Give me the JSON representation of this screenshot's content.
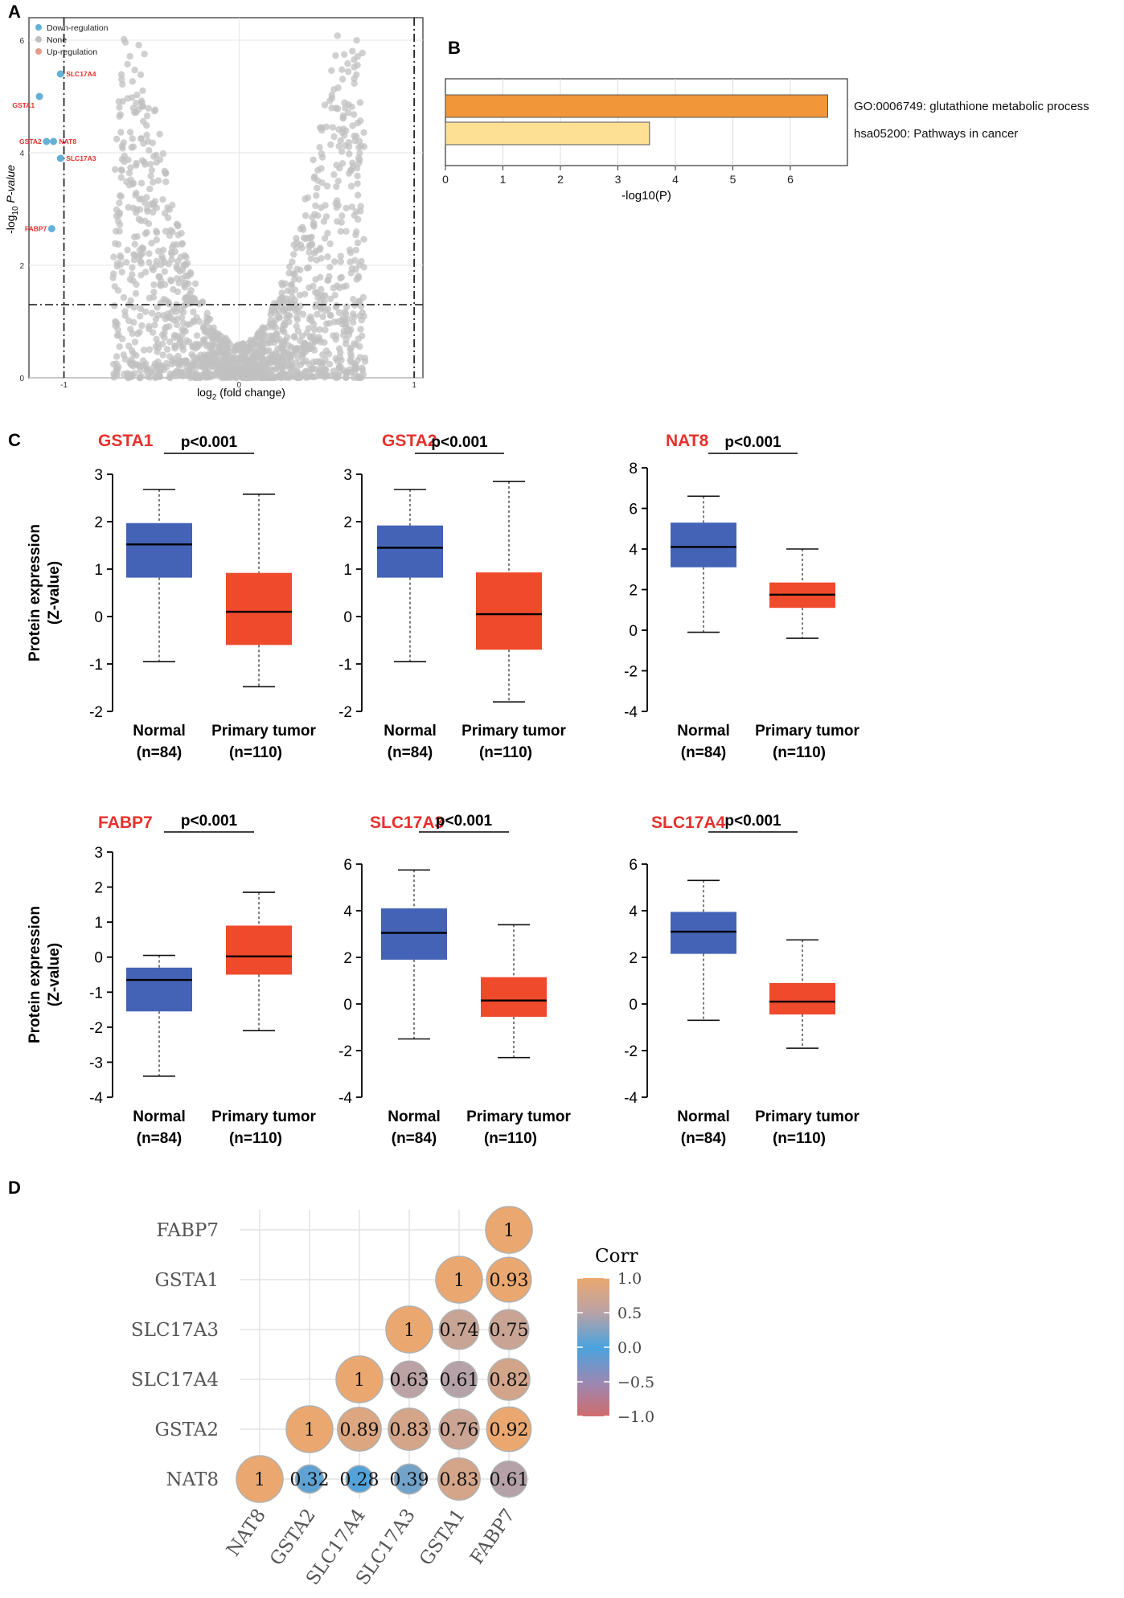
{
  "panels": {
    "a": "A",
    "b": "B",
    "c": "C",
    "d": "D"
  },
  "colors": {
    "down": "#64b1d6",
    "none": "#c0c0c0",
    "up": "#e59a8a",
    "bar1": "#f2963a",
    "bar2": "#fde093",
    "normal": "#4463b7",
    "tumor": "#ef4a2b",
    "geneTitle": "#e8302d"
  },
  "chart_data": [
    {
      "id": "volcano",
      "type": "scatter",
      "title": "",
      "xlabel_base": "log",
      "xlabel_sub": "2",
      "xlabel_rest": " (fold change)",
      "ylabel_pre": "-log",
      "ylabel_sub": "10",
      "ylabel_rest": " P-value",
      "xlim": [
        -1.2,
        1.05
      ],
      "ylim": [
        0,
        6.4
      ],
      "xticks": [
        -1,
        0,
        1
      ],
      "yticks": [
        0,
        2,
        4,
        6
      ],
      "thresholds": {
        "x": [
          -1,
          1
        ],
        "y": 1.3
      },
      "legend": [
        {
          "label": "Down-regulation",
          "color": "down"
        },
        {
          "label": "None",
          "color": "none"
        },
        {
          "label": "Up-regulation",
          "color": "up"
        }
      ],
      "highlighted": [
        {
          "label": "SLC17A4",
          "x": -1.02,
          "y": 5.4
        },
        {
          "label": "GSTA1",
          "x": -1.14,
          "y": 5.0
        },
        {
          "label": "GSTA2",
          "x": -1.1,
          "y": 4.2
        },
        {
          "label": "NAT8",
          "x": -1.06,
          "y": 4.2
        },
        {
          "label": "SLC17A3",
          "x": -1.02,
          "y": 3.9
        },
        {
          "label": "FABP7",
          "x": -1.07,
          "y": 2.65
        }
      ]
    },
    {
      "id": "enrichment",
      "type": "bar",
      "orientation": "horizontal",
      "categories": [
        "GO:0006749: glutathione metabolic process",
        "hsa05200: Pathways in cancer"
      ],
      "values": [
        6.65,
        3.55
      ],
      "xlabel": "-log10(P)",
      "xlim": [
        0,
        7
      ],
      "xticks": [
        0,
        1,
        2,
        3,
        4,
        5,
        6
      ]
    },
    {
      "id": "box-gsta1",
      "type": "box",
      "gene": "GSTA1",
      "pvalue": "p<0.001",
      "ylabel": "Protein expression",
      "ylabel2": "(Z-value)",
      "ylim": [
        -2,
        3
      ],
      "yticks": [
        3,
        2,
        1,
        0,
        -1,
        -2
      ],
      "groups": [
        {
          "name": "Normal",
          "n": "(n=84)",
          "min": -0.95,
          "q1": 0.82,
          "median": 1.52,
          "q3": 1.97,
          "max": 2.68
        },
        {
          "name": "Primary tumor",
          "n": "(n=110)",
          "min": -1.48,
          "q1": -0.6,
          "median": 0.1,
          "q3": 0.92,
          "max": 2.58
        }
      ]
    },
    {
      "id": "box-gsta2",
      "type": "box",
      "gene": "GSTA2",
      "pvalue": "p<0.001",
      "ylabel": "",
      "ylabel2": "",
      "ylim": [
        -2,
        3
      ],
      "yticks": [
        3,
        2,
        1,
        0,
        -1,
        -2
      ],
      "groups": [
        {
          "name": "Normal",
          "n": "(n=84)",
          "min": -0.95,
          "q1": 0.82,
          "median": 1.45,
          "q3": 1.92,
          "max": 2.68
        },
        {
          "name": "Primary tumor",
          "n": "(n=110)",
          "min": -1.8,
          "q1": -0.7,
          "median": 0.05,
          "q3": 0.93,
          "max": 2.85
        }
      ]
    },
    {
      "id": "box-nat8",
      "type": "box",
      "gene": "NAT8",
      "pvalue": "p<0.001",
      "ylabel": "",
      "ylabel2": "",
      "ylim": [
        -4,
        8
      ],
      "yticks": [
        8,
        6,
        4,
        2,
        0,
        -2,
        -4
      ],
      "groups": [
        {
          "name": "Normal",
          "n": "(n=84)",
          "min": -0.1,
          "q1": 3.1,
          "median": 4.1,
          "q3": 5.3,
          "max": 6.6
        },
        {
          "name": "Primary tumor",
          "n": "(n=110)",
          "min": -0.4,
          "q1": 1.1,
          "median": 1.75,
          "q3": 2.35,
          "max": 4.0
        }
      ]
    },
    {
      "id": "box-fabp7",
      "type": "box",
      "gene": "FABP7",
      "pvalue": "p<0.001",
      "ylabel": "Protein expression",
      "ylabel2": "(Z-value)",
      "ylim": [
        -4,
        3
      ],
      "yticks": [
        3,
        2,
        1,
        0,
        -1,
        -2,
        -3,
        -4
      ],
      "groups": [
        {
          "name": "Normal",
          "n": "(n=84)",
          "min": -3.4,
          "q1": -1.55,
          "median": -0.65,
          "q3": -0.3,
          "max": 0.05
        },
        {
          "name": "Primary tumor",
          "n": "(n=110)",
          "min": -2.1,
          "q1": -0.5,
          "median": 0.02,
          "q3": 0.9,
          "max": 1.85
        }
      ]
    },
    {
      "id": "box-slc17a3",
      "type": "box",
      "gene": "SLC17A3",
      "pvalue": "p<0.001",
      "ylabel": "",
      "ylabel2": "",
      "ylim": [
        -4,
        6
      ],
      "yticks": [
        6,
        4,
        2,
        0,
        -2,
        -4
      ],
      "groups": [
        {
          "name": "Normal",
          "n": "(n=84)",
          "min": -1.5,
          "q1": 1.9,
          "median": 3.05,
          "q3": 4.1,
          "max": 5.75
        },
        {
          "name": "Primary tumor",
          "n": "(n=110)",
          "min": -2.3,
          "q1": -0.55,
          "median": 0.15,
          "q3": 1.15,
          "max": 3.4
        }
      ]
    },
    {
      "id": "box-slc17a4",
      "type": "box",
      "gene": "SLC17A4",
      "pvalue": "p<0.001",
      "ylabel": "",
      "ylabel2": "",
      "ylim": [
        -4,
        6
      ],
      "yticks": [
        6,
        4,
        2,
        0,
        -2,
        -4
      ],
      "groups": [
        {
          "name": "Normal",
          "n": "(n=84)",
          "min": -0.7,
          "q1": 2.15,
          "median": 3.1,
          "q3": 3.95,
          "max": 5.3
        },
        {
          "name": "Primary tumor",
          "n": "(n=110)",
          "min": -1.9,
          "q1": -0.45,
          "median": 0.1,
          "q3": 0.9,
          "max": 2.75
        }
      ]
    },
    {
      "id": "corr",
      "type": "heatmap",
      "genes": [
        "NAT8",
        "GSTA2",
        "SLC17A4",
        "SLC17A3",
        "GSTA1",
        "FABP7"
      ],
      "rows_top_to_bottom": [
        "FABP7",
        "GSTA1",
        "SLC17A3",
        "SLC17A4",
        "GSTA2",
        "NAT8"
      ],
      "matrix": [
        [
          1,
          0.32,
          0.28,
          0.39,
          0.83,
          0.61
        ],
        [
          0.32,
          1,
          0.89,
          0.83,
          0.76,
          0.92
        ],
        [
          0.28,
          0.89,
          1,
          0.63,
          0.61,
          0.82
        ],
        [
          0.39,
          0.83,
          0.63,
          1,
          0.74,
          0.75
        ],
        [
          0.83,
          0.76,
          0.61,
          0.74,
          1,
          0.93
        ],
        [
          0.61,
          0.92,
          0.82,
          0.75,
          0.93,
          1
        ]
      ],
      "labels": [
        [
          "1",
          "0.32",
          "0.28",
          "0.39",
          "0.83",
          "0.61"
        ],
        [
          "",
          "1",
          "0.89",
          "0.83",
          "0.76",
          "0.92"
        ],
        [
          "",
          "",
          "1",
          "0.63",
          "0.61",
          "0.82"
        ],
        [
          "",
          "",
          "",
          "1",
          "0.74",
          "0.75"
        ],
        [
          "",
          "",
          "",
          "",
          "1",
          "0.93"
        ],
        [
          "",
          "",
          "",
          "",
          "",
          "1"
        ]
      ],
      "legend_title": "Corr",
      "legend_ticks": [
        "1.0",
        "0.5",
        "0.0",
        "−0.5",
        "−1.0"
      ],
      "legend_values": [
        1,
        0.5,
        0,
        -0.5,
        -1
      ]
    }
  ]
}
